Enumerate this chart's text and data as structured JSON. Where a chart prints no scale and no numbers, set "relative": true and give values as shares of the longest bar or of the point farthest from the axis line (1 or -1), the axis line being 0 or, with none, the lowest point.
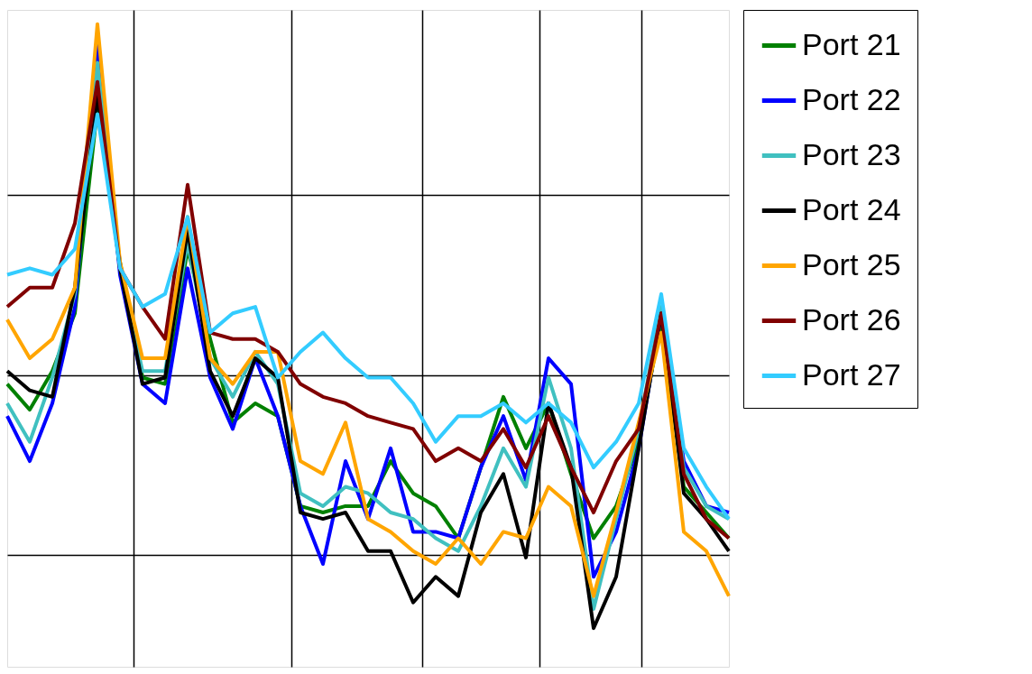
{
  "chart_data": {
    "type": "line",
    "relative": true,
    "grid": true,
    "legend": "right",
    "line_style": "solid",
    "categories": [
      null,
      null,
      null,
      null,
      null,
      null,
      null,
      null,
      null,
      null,
      null,
      null,
      null,
      null,
      null,
      null,
      null,
      null,
      null,
      null,
      null,
      null,
      null,
      null,
      null,
      null,
      null,
      null,
      null,
      null,
      null,
      null,
      null
    ],
    "series": [
      {
        "name": "Port 21",
        "color": "#008000",
        "values": [
          0.44,
          0.4,
          0.46,
          0.55,
          0.87,
          0.63,
          0.45,
          0.44,
          0.65,
          0.51,
          0.38,
          0.41,
          0.39,
          0.25,
          0.24,
          0.25,
          0.25,
          0.32,
          0.27,
          0.25,
          0.2,
          0.31,
          0.42,
          0.34,
          0.41,
          0.3,
          0.2,
          0.25,
          0.35,
          0.54,
          0.28,
          0.24,
          0.2
        ]
      },
      {
        "name": "Port 22",
        "color": "#0000ff",
        "values": [
          0.39,
          0.32,
          0.41,
          0.56,
          0.97,
          0.61,
          0.44,
          0.41,
          0.62,
          0.45,
          0.37,
          0.48,
          0.39,
          0.25,
          0.16,
          0.32,
          0.23,
          0.34,
          0.21,
          0.21,
          0.2,
          0.31,
          0.39,
          0.29,
          0.48,
          0.44,
          0.14,
          0.21,
          0.34,
          0.55,
          0.32,
          0.25,
          0.24
        ]
      },
      {
        "name": "Port 23",
        "color": "#40c0c0",
        "values": [
          0.41,
          0.35,
          0.45,
          0.58,
          0.94,
          0.62,
          0.46,
          0.46,
          0.66,
          0.48,
          0.42,
          0.49,
          0.44,
          0.27,
          0.25,
          0.28,
          0.27,
          0.24,
          0.23,
          0.2,
          0.18,
          0.25,
          0.34,
          0.28,
          0.45,
          0.34,
          0.09,
          0.23,
          0.37,
          0.56,
          0.31,
          0.25,
          0.23
        ]
      },
      {
        "name": "Port 24",
        "color": "#000000",
        "values": [
          0.46,
          0.43,
          0.42,
          0.59,
          0.89,
          0.62,
          0.44,
          0.45,
          0.68,
          0.46,
          0.39,
          0.48,
          0.45,
          0.24,
          0.23,
          0.24,
          0.18,
          0.18,
          0.1,
          0.14,
          0.11,
          0.24,
          0.3,
          0.17,
          0.41,
          0.31,
          0.06,
          0.14,
          0.34,
          0.55,
          0.27,
          0.23,
          0.18
        ]
      },
      {
        "name": "Port 25",
        "color": "#ffa500",
        "values": [
          0.54,
          0.48,
          0.51,
          0.59,
          1.0,
          0.63,
          0.48,
          0.48,
          0.7,
          0.48,
          0.44,
          0.49,
          0.49,
          0.32,
          0.3,
          0.38,
          0.23,
          0.21,
          0.18,
          0.16,
          0.2,
          0.16,
          0.21,
          0.2,
          0.28,
          0.25,
          0.11,
          0.24,
          0.38,
          0.52,
          0.21,
          0.18,
          0.11
        ]
      },
      {
        "name": "Port 26",
        "color": "#800000",
        "values": [
          0.56,
          0.59,
          0.59,
          0.69,
          0.91,
          0.62,
          0.56,
          0.51,
          0.75,
          0.52,
          0.51,
          0.51,
          0.49,
          0.44,
          0.42,
          0.41,
          0.39,
          0.38,
          0.37,
          0.32,
          0.34,
          0.32,
          0.37,
          0.31,
          0.39,
          0.31,
          0.24,
          0.32,
          0.37,
          0.55,
          0.3,
          0.23,
          0.2
        ]
      },
      {
        "name": "Port 27",
        "color": "#33ccff",
        "values": [
          0.61,
          0.62,
          0.61,
          0.65,
          0.86,
          0.62,
          0.56,
          0.58,
          0.7,
          0.52,
          0.55,
          0.56,
          0.45,
          0.49,
          0.52,
          0.48,
          0.45,
          0.45,
          0.41,
          0.35,
          0.39,
          0.39,
          0.41,
          0.38,
          0.41,
          0.38,
          0.31,
          0.35,
          0.41,
          0.58,
          0.34,
          0.28,
          0.23
        ]
      }
    ]
  }
}
